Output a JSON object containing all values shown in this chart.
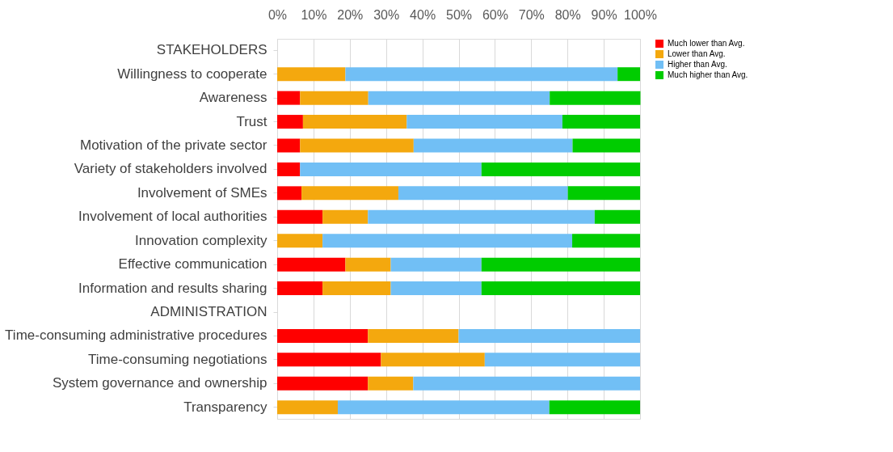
{
  "chart_data": {
    "type": "bar",
    "orientation": "horizontal",
    "stacked": true,
    "categories": [
      "STAKEHOLDERS",
      "Willingness to cooperate",
      "Awareness",
      "Trust",
      "Motivation of the private sector",
      "Variety of stakeholders involved",
      "Involvement of SMEs",
      "Involvement of local authorities",
      "Innovation complexity",
      "Effective communication",
      "Information and results sharing",
      "ADMINISTRATION",
      "Time-consuming administrative procedures",
      "Time-consuming negotiations",
      "System governance and ownership",
      "Transparency"
    ],
    "series": [
      {
        "name": "Much lower than Avg.",
        "color": "#ff0000",
        "values": [
          null,
          0,
          6.3,
          7.1,
          6.3,
          6.3,
          6.7,
          12.5,
          0,
          18.8,
          12.5,
          null,
          25,
          28.6,
          25,
          0
        ]
      },
      {
        "name": "Lower than Avg.",
        "color": "#f4a80e",
        "values": [
          null,
          18.8,
          18.8,
          28.6,
          31.3,
          0,
          26.7,
          12.5,
          12.5,
          12.5,
          18.8,
          null,
          25,
          28.6,
          12.5,
          16.7
        ]
      },
      {
        "name": "Higher than Avg.",
        "color": "#71bff5",
        "values": [
          null,
          75,
          50,
          42.9,
          43.8,
          50,
          46.7,
          62.5,
          68.8,
          25,
          25,
          null,
          50,
          42.8,
          62.5,
          58.3
        ]
      },
      {
        "name": "Much higher than Avg.",
        "color": "#00cc00",
        "values": [
          null,
          6.2,
          25,
          21.4,
          18.6,
          43.7,
          19.9,
          12.5,
          18.7,
          43.7,
          43.7,
          null,
          0,
          0,
          0,
          25
        ]
      }
    ],
    "xlim": [
      0,
      100
    ],
    "xticks": [
      {
        "value": 0,
        "label": "0%"
      },
      {
        "value": 10,
        "label": "10%"
      },
      {
        "value": 20,
        "label": "20%"
      },
      {
        "value": 30,
        "label": "30%"
      },
      {
        "value": 40,
        "label": "40%"
      },
      {
        "value": 50,
        "label": "50%"
      },
      {
        "value": 60,
        "label": "60%"
      },
      {
        "value": 70,
        "label": "70%"
      },
      {
        "value": 80,
        "label": "80%"
      },
      {
        "value": 90,
        "label": "90%"
      },
      {
        "value": 100,
        "label": "100%"
      }
    ],
    "grid": "x",
    "legend": "right"
  }
}
